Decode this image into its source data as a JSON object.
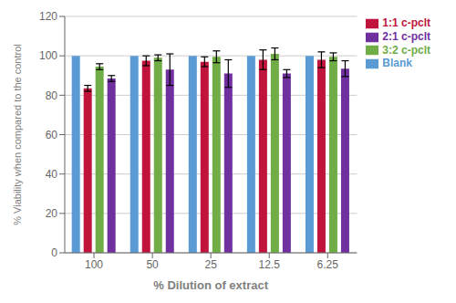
{
  "chart_data": {
    "type": "bar",
    "xlabel": "% Dilution of extract",
    "ylabel": "% Viability when compared to the control",
    "categories": [
      "100",
      "50",
      "25",
      "12.5",
      "6.25"
    ],
    "series": [
      {
        "name": "Blank",
        "color": "#5B9BD5",
        "values": [
          100,
          100,
          100,
          100,
          100
        ],
        "errors": [
          0,
          0,
          0,
          0,
          0
        ]
      },
      {
        "name": "1:1 c-pclt",
        "color": "#C0143C",
        "values": [
          83.5,
          97.5,
          97,
          98,
          98
        ],
        "errors": [
          1.5,
          2.5,
          2.5,
          5,
          4
        ]
      },
      {
        "name": "3:2 c-pclt",
        "color": "#70AD47",
        "values": [
          94.5,
          99,
          99.5,
          101,
          99.5
        ],
        "errors": [
          1.5,
          1.5,
          3,
          3,
          2
        ]
      },
      {
        "name": "2:1 c-pclt",
        "color": "#7030A0",
        "values": [
          88.5,
          93,
          91,
          91,
          93.5
        ],
        "errors": [
          1.5,
          8,
          7,
          2,
          4
        ]
      }
    ],
    "ylim": [
      0,
      120
    ],
    "yticks": [
      0,
      20,
      40,
      60,
      80,
      100,
      120
    ],
    "grid": true,
    "legend": "right"
  }
}
